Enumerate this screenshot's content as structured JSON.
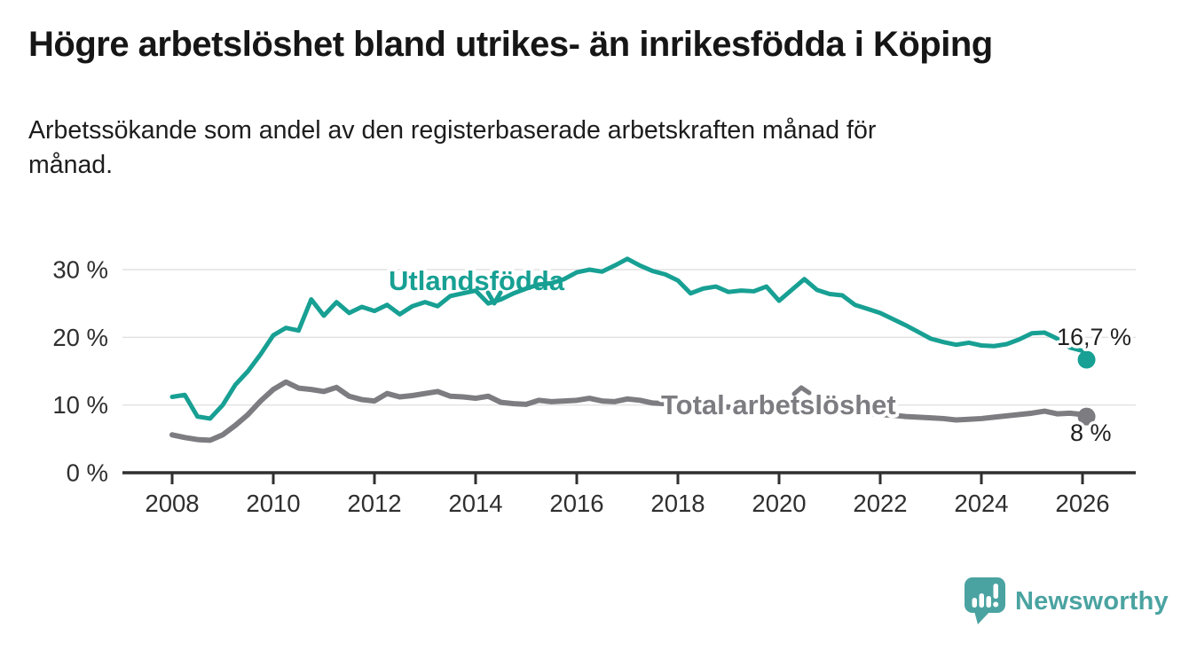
{
  "header": {
    "title": "Högre arbetslöshet bland utrikes- än inrikesfödda i Köping",
    "subtitle": "Arbetssökande som andel av den registerbaserade arbetskraften månad för månad."
  },
  "footer": {
    "brand_name": "Newsworthy"
  },
  "colors": {
    "foreign_born": "#17a093",
    "total": "#7c7c81",
    "grid": "#e2e2e2",
    "axis": "#2f2f2f",
    "text": "#1f1f1f",
    "brand_teal": "#4aa3a1",
    "background": "#ffffff"
  },
  "chart_data": {
    "type": "line",
    "title": "Högre arbetslöshet bland utrikes- än inrikesfödda i Köping",
    "subtitle": "Arbetssökande som andel av den registerbaserade arbetskraften månad för månad.",
    "unit": "%",
    "grid": "horizontal",
    "legend_position": "inline-labels",
    "xlim": [
      2007.05,
      2027.05
    ],
    "ylim": [
      0,
      33.2
    ],
    "x_ticks": [
      2008,
      2010,
      2012,
      2014,
      2016,
      2018,
      2020,
      2022,
      2024,
      2026
    ],
    "y_ticks": [
      {
        "label": "0 %",
        "value": 0
      },
      {
        "label": "10 %",
        "value": 10
      },
      {
        "label": "20 %",
        "value": 20
      },
      {
        "label": "30 %",
        "value": 30
      }
    ],
    "x": [
      2008,
      2008.25,
      2008.5,
      2008.75,
      2009,
      2009.25,
      2009.5,
      2009.75,
      2010,
      2010.25,
      2010.5,
      2010.75,
      2011,
      2011.25,
      2011.5,
      2011.75,
      2012,
      2012.25,
      2012.5,
      2012.75,
      2013,
      2013.25,
      2013.5,
      2013.75,
      2014,
      2014.25,
      2014.5,
      2014.75,
      2015,
      2015.25,
      2015.5,
      2015.75,
      2016,
      2016.25,
      2016.5,
      2016.75,
      2017,
      2017.25,
      2017.5,
      2017.75,
      2018,
      2018.25,
      2018.5,
      2018.75,
      2019,
      2019.25,
      2019.5,
      2019.75,
      2020,
      2020.25,
      2020.5,
      2020.75,
      2021,
      2021.25,
      2021.5,
      2021.75,
      2022,
      2022.25,
      2022.5,
      2022.75,
      2023,
      2023.25,
      2023.5,
      2023.75,
      2024,
      2024.25,
      2024.5,
      2024.75,
      2025,
      2025.25,
      2025.5,
      2025.75,
      2026,
      2026.08
    ],
    "series": [
      {
        "name": "Utlandsfödda",
        "color": "#17a093",
        "end_label": "16,7 %",
        "end_value": 16.7,
        "values": [
          11.2,
          11.5,
          8.3,
          8,
          10,
          13,
          15,
          17.5,
          20.3,
          21.4,
          21,
          25.6,
          23.2,
          25.2,
          23.6,
          24.5,
          23.9,
          24.8,
          23.4,
          24.6,
          25.2,
          24.6,
          26.1,
          26.5,
          26.9,
          25,
          25.6,
          26.5,
          27.2,
          27.8,
          28,
          28.6,
          29.6,
          30,
          29.7,
          30.6,
          31.6,
          30.6,
          29.8,
          29.3,
          28.4,
          26.5,
          27.2,
          27.5,
          26.7,
          26.9,
          26.8,
          27.5,
          25.4,
          27,
          28.6,
          27,
          26.4,
          26.2,
          24.8,
          24.2,
          23.6,
          22.7,
          21.8,
          20.8,
          19.8,
          19.3,
          18.9,
          19.2,
          18.8,
          18.7,
          19,
          19.7,
          20.6,
          20.7,
          19.8,
          18.5,
          18,
          16.7
        ]
      },
      {
        "name": "Total arbetslöshet",
        "color": "#7c7c81",
        "end_label": "8 %",
        "end_value": 8,
        "values": [
          5.6,
          5.2,
          4.9,
          4.8,
          5.6,
          7,
          8.6,
          10.6,
          12.3,
          13.4,
          12.5,
          12.3,
          12,
          12.6,
          11.3,
          10.8,
          10.6,
          11.7,
          11.2,
          11.4,
          11.7,
          12,
          11.3,
          11.2,
          11,
          11.3,
          10.4,
          10.2,
          10.1,
          10.7,
          10.5,
          10.6,
          10.7,
          11,
          10.6,
          10.5,
          10.9,
          10.7,
          10.3,
          10.2,
          10.4,
          10.2,
          9.9,
          9.8,
          9.7,
          9.8,
          9.5,
          9.6,
          9.4,
          10,
          10.2,
          9.9,
          9.6,
          9.3,
          9,
          8.8,
          8.6,
          8.5,
          8.3,
          8.2,
          8.1,
          8,
          7.8,
          7.9,
          8,
          8.2,
          8.4,
          8.6,
          8.8,
          9.1,
          8.7,
          8.8,
          8.6,
          8.3
        ]
      }
    ]
  }
}
